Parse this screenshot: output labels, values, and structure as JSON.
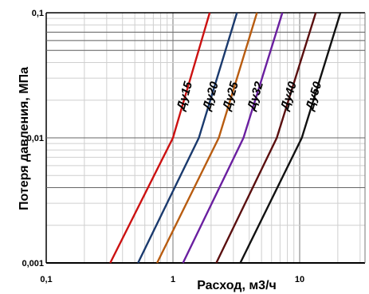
{
  "chart_data": {
    "type": "line",
    "title": "",
    "xlabel": "Расход, м3/ч",
    "ylabel": "Потеря давления, МПа",
    "x_scale": "log",
    "y_scale": "log",
    "xlim": [
      0.1,
      30
    ],
    "ylim": [
      0.001,
      0.1
    ],
    "grid": true,
    "legend": "none",
    "x_ticks": [
      "0,1",
      "1",
      "10"
    ],
    "y_ticks": [
      "0,001",
      "0,01",
      "0,1"
    ],
    "series": [
      {
        "name": "Ду15",
        "color": "#cc1111",
        "x": [
          0.32,
          1.0,
          1.95
        ],
        "y": [
          0.001,
          0.01,
          0.1
        ]
      },
      {
        "name": "Ду20",
        "color": "#1a3a6e",
        "x": [
          0.53,
          1.6,
          3.2
        ],
        "y": [
          0.001,
          0.01,
          0.1
        ]
      },
      {
        "name": "Ду25",
        "color": "#b85c10",
        "x": [
          0.75,
          2.3,
          4.6
        ],
        "y": [
          0.001,
          0.01,
          0.1
        ]
      },
      {
        "name": "Ду32",
        "color": "#6a1fa0",
        "x": [
          1.2,
          3.6,
          7.3
        ],
        "y": [
          0.001,
          0.01,
          0.1
        ]
      },
      {
        "name": "Ду40",
        "color": "#5a0f0f",
        "x": [
          2.2,
          6.6,
          13.4
        ],
        "y": [
          0.001,
          0.01,
          0.1
        ]
      },
      {
        "name": "Ду50",
        "color": "#111111",
        "x": [
          3.4,
          10.4,
          21
        ],
        "y": [
          0.001,
          0.01,
          0.1
        ]
      }
    ]
  }
}
